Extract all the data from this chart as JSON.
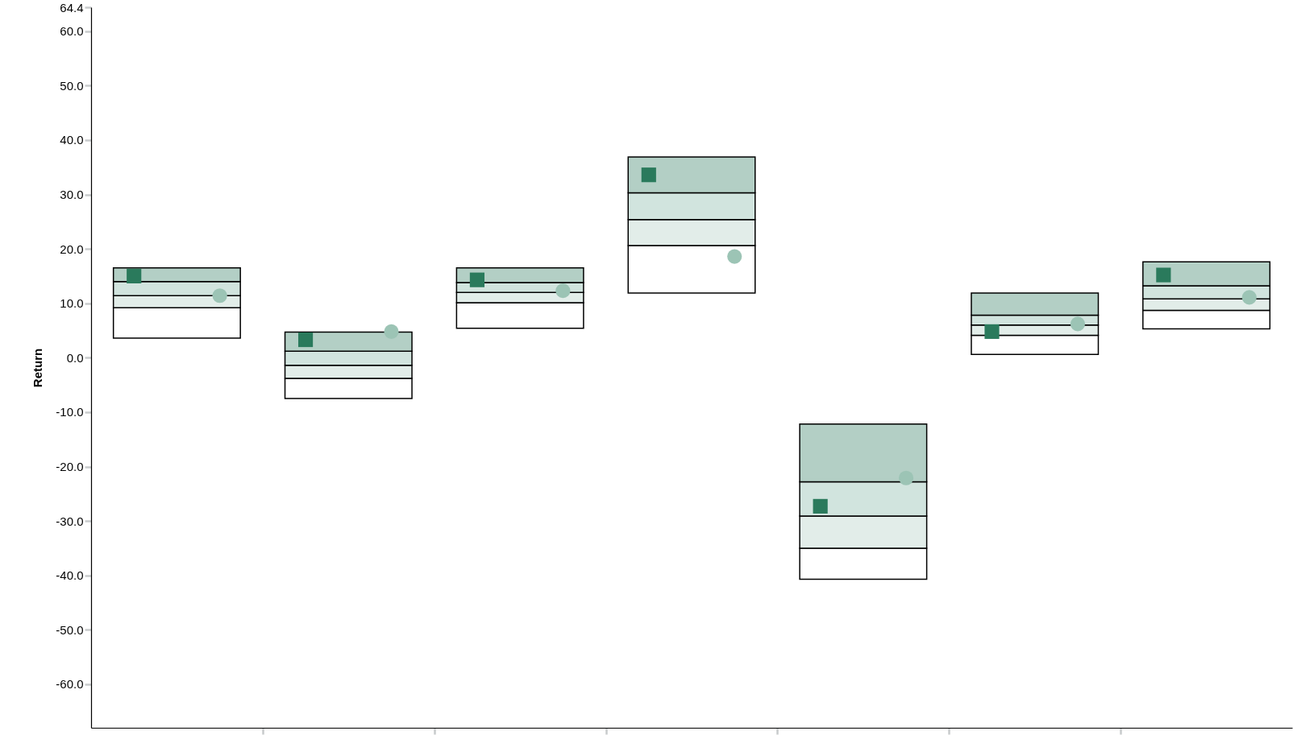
{
  "chart_data": {
    "type": "bar",
    "ylabel": "Return",
    "categories": [
      null,
      null,
      null,
      null,
      null,
      null,
      null
    ],
    "series": [
      {
        "color": "#ffffff",
        "base": [
          3.6,
          -7.5,
          5.4,
          11.9,
          -40.7,
          0.6,
          5.3
        ],
        "values": [
          5.6,
          3.7,
          4.7,
          8.7,
          5.7,
          3.5,
          3.4
        ]
      },
      {
        "color": "#e2ede9",
        "base": [
          9.2,
          -3.8,
          10.1,
          20.6,
          -35.0,
          4.1,
          8.7
        ],
        "values": [
          2.2,
          2.4,
          1.9,
          4.8,
          5.9,
          1.9,
          2.1
        ]
      },
      {
        "color": "#d1e4de",
        "base": [
          11.4,
          -1.4,
          12.0,
          25.4,
          -29.1,
          6.0,
          10.8
        ],
        "values": [
          2.6,
          2.6,
          1.8,
          4.9,
          6.3,
          1.8,
          2.4
        ]
      },
      {
        "color": "#b3cfc5",
        "base": [
          14.0,
          1.2,
          13.8,
          30.3,
          -22.8,
          7.8,
          13.2
        ],
        "values": [
          2.5,
          3.5,
          2.7,
          6.6,
          10.6,
          4.1,
          4.4
        ]
      },
      {
        "type": "scatter",
        "marker": "square",
        "color": "#2a7a5c",
        "values": [
          15.0,
          3.3,
          14.3,
          33.6,
          -27.3,
          4.8,
          15.2
        ]
      },
      {
        "type": "scatter",
        "marker": "circle",
        "color": "#9cc4b5",
        "values": [
          11.4,
          4.8,
          12.3,
          18.6,
          -22.1,
          6.2,
          11.1
        ]
      }
    ],
    "ylim": [
      -68,
      64.4
    ],
    "yticks": [
      {
        "value": -60,
        "label": "-60.0"
      },
      {
        "value": -50,
        "label": "-50.0"
      },
      {
        "value": -40,
        "label": "-40.0"
      },
      {
        "value": -30,
        "label": "-30.0"
      },
      {
        "value": -20,
        "label": "-20.0"
      },
      {
        "value": -10,
        "label": "-10.0"
      },
      {
        "value": 0,
        "label": "0.0"
      },
      {
        "value": 10,
        "label": "10.0"
      },
      {
        "value": 20,
        "label": "20.0"
      },
      {
        "value": 30,
        "label": "30.0"
      },
      {
        "value": 40,
        "label": "40.0"
      },
      {
        "value": 50,
        "label": "50.0"
      },
      {
        "value": 60,
        "label": "60.0"
      },
      64.4
    ],
    "tick_labels": "y"
  }
}
